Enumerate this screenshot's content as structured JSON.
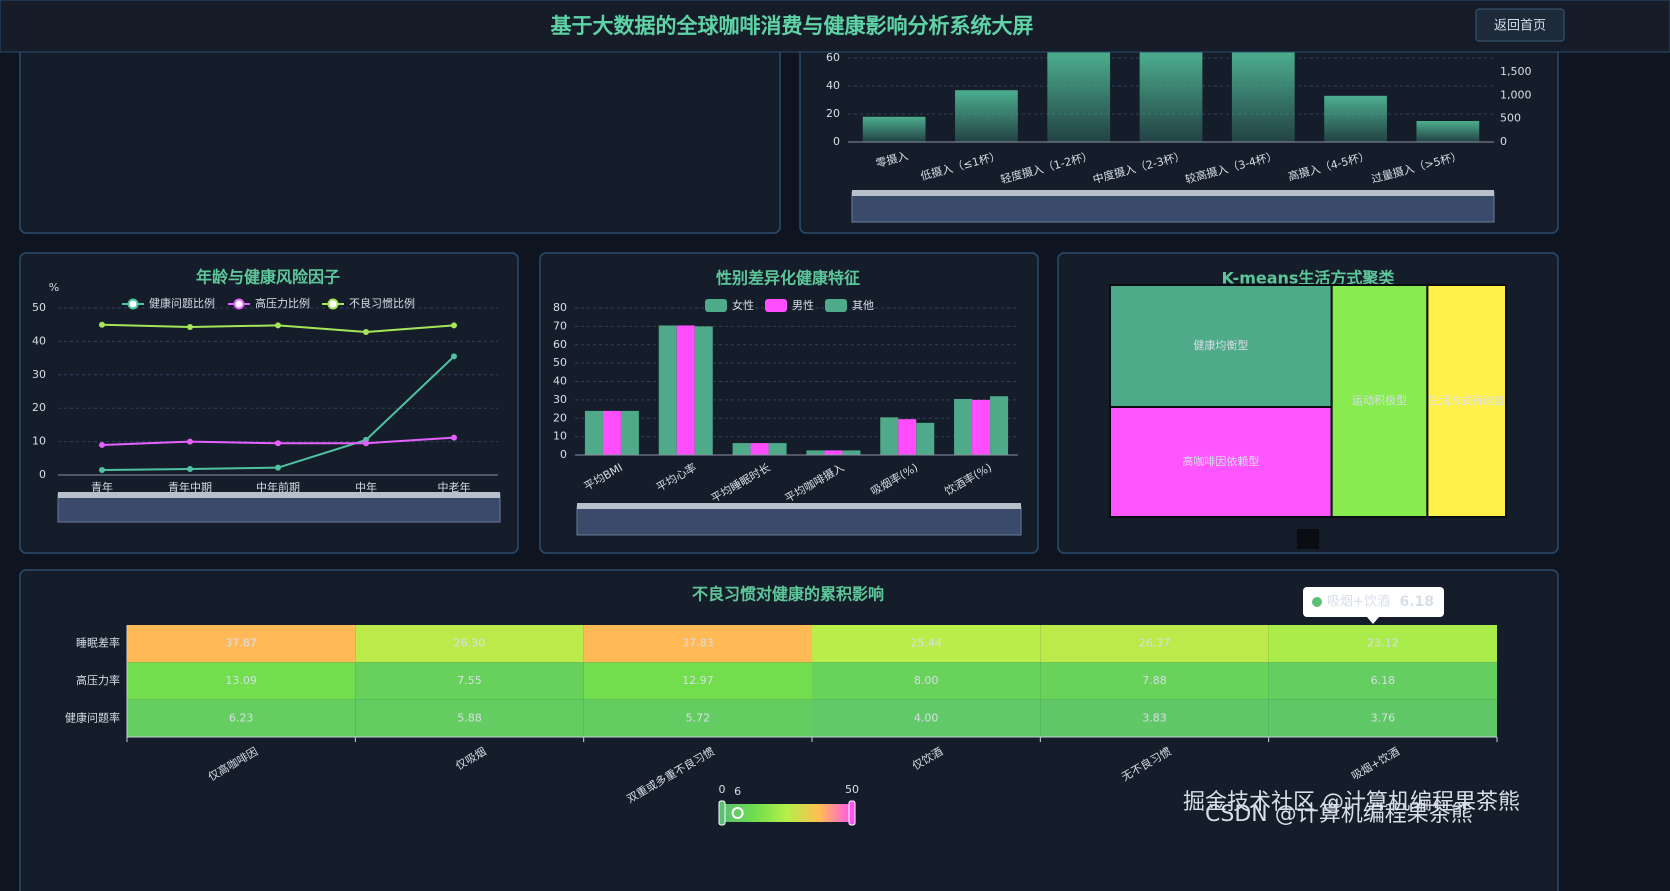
{
  "header": {
    "title": "基于大数据的全球咖啡消费与健康影响分析系统大屏",
    "button": "返回首页"
  },
  "chart_data": [
    {
      "type": "bar",
      "categories": [
        "零摄入",
        "低摄入（≤1杯）",
        "轻度摄入（1-2杯）",
        "中度摄入（2-3杯）",
        "较高摄入（3-4杯）",
        "高摄入（4-5杯）",
        "过量摄入（>5杯）"
      ],
      "values": [
        18,
        37,
        65,
        65,
        65,
        33,
        15
      ],
      "color": "#4caf8e",
      "ylim": [
        0,
        60
      ],
      "yticks": [
        0,
        20,
        40,
        60
      ],
      "y2lim": [
        0,
        1800
      ],
      "y2ticks": [
        0,
        500,
        {
          "value": 1000,
          "label": "1,000"
        },
        {
          "value": 1500,
          "label": "1,500"
        }
      ],
      "grid": true
    },
    {
      "type": "line",
      "title": "年龄与健康风险因子",
      "y_label": "%",
      "categories": [
        "青年",
        "青年中期",
        "中年前期",
        "中年",
        "中老年"
      ],
      "series": [
        {
          "name": "健康问题比例",
          "color": "#4fc3a1",
          "values": [
            1.5,
            1.8,
            2.2,
            10.5,
            35.5
          ]
        },
        {
          "name": "高压力比例",
          "color": "#e561ff",
          "values": [
            9,
            10,
            9.5,
            9.5,
            11.2
          ]
        },
        {
          "name": "不良习惯比例",
          "color": "#a4e65a",
          "values": [
            45,
            44.3,
            44.8,
            42.8,
            44.8
          ]
        }
      ],
      "ylim": [
        0,
        50
      ],
      "yticks": [
        0,
        10,
        20,
        30,
        40,
        50
      ],
      "grid": true
    },
    {
      "type": "bar",
      "title": "性别差异化健康特征",
      "categories": [
        "平均BMI",
        "平均心率",
        "平均睡眠时长",
        "平均咖啡摄入",
        "吸烟率(%)",
        "饮酒率(%)"
      ],
      "series": [
        {
          "name": "女性",
          "color": "#4eaa88",
          "values": [
            24,
            70.5,
            6.5,
            2.5,
            20.5,
            30.5
          ]
        },
        {
          "name": "男性",
          "color": "#ff4dff",
          "values": [
            24,
            70.5,
            6.5,
            2.5,
            19.5,
            30
          ]
        },
        {
          "name": "其他",
          "color": "#4eaa88",
          "values": [
            24,
            70,
            6.5,
            2.5,
            17.5,
            32
          ]
        }
      ],
      "ylim": [
        0,
        80
      ],
      "yticks": [
        0,
        10,
        20,
        30,
        40,
        50,
        60,
        70,
        80
      ],
      "grid": true
    },
    {
      "type": "treemap",
      "title": "K-means生活方式聚类",
      "categories": [
        "健康均衡型",
        "高咖啡因依赖型",
        "运动积极型",
        "生活方式待改善"
      ],
      "values": [
        2684,
        2420,
        2204,
        1810
      ],
      "colors": [
        "#4eaa88",
        "#ff55ff",
        "#88ec50",
        "#fff04a"
      ]
    },
    {
      "type": "heatmap",
      "title": "不良习惯对健康的累积影响",
      "rows": [
        "睡眠差率",
        "高压力率",
        "健康问题率"
      ],
      "columns": [
        "仅高咖啡因",
        "仅吸烟",
        "双重或多重不良习惯",
        "仅饮酒",
        "无不良习惯",
        "吸烟+饮酒"
      ],
      "values": [
        [
          37.87,
          26.3,
          37.83,
          25.44,
          26.37,
          23.12
        ],
        [
          13.09,
          7.55,
          12.97,
          8.0,
          7.88,
          6.18
        ],
        [
          6.23,
          5.88,
          5.72,
          4.0,
          3.83,
          3.76
        ]
      ],
      "value_labels": [
        [
          "37.87",
          "26.30",
          "37.83",
          "25.44",
          "26.37",
          "23.12"
        ],
        [
          "13.09",
          "7.55",
          "12.97",
          "8.00",
          "7.88",
          "6.18"
        ],
        [
          "6.23",
          "5.88",
          "5.72",
          "4.00",
          "3.83",
          "3.76"
        ]
      ],
      "visual_map": {
        "min": 0,
        "max": 50,
        "value": 6,
        "colors": [
          "#5bbf74",
          "#6fdd4d",
          "#b5ef4a",
          "#ffbd52",
          "#ff55ee"
        ]
      },
      "tooltip": {
        "name": "吸烟+饮酒",
        "value": 6.18
      }
    }
  ],
  "watermarks": [
    "掘金技术社区 @计算机编程果茶熊",
    "CSDN @计算机编程果茶熊"
  ]
}
